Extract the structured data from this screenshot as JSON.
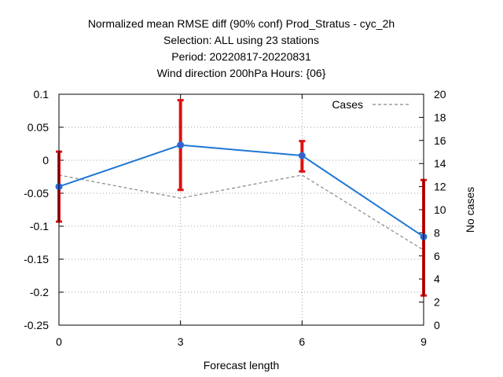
{
  "chart_data": {
    "type": "line",
    "title_lines": [
      "Normalized mean RMSE diff (90% conf) Prod_Stratus - cyc_2h",
      "Selection: ALL using    23 stations",
      "Period: 20220817-20220831",
      "Wind direction 200hPa   Hours: {06}"
    ],
    "xlabel": "Forecast length",
    "ylabel_right": "No cases",
    "x": [
      0,
      3,
      6,
      9
    ],
    "x_ticks": [
      "0",
      "3",
      "6",
      "9"
    ],
    "xlim": [
      0,
      9
    ],
    "ylim_left": [
      -0.25,
      0.1
    ],
    "y_ticks_left": [
      "0.1",
      "0.05",
      "0",
      "-0.05",
      "-0.1",
      "-0.15",
      "-0.2",
      "-0.25"
    ],
    "ylim_right": [
      0,
      20
    ],
    "y_ticks_right": [
      "20",
      "18",
      "16",
      "14",
      "12",
      "10",
      "8",
      "6",
      "4",
      "2",
      "0"
    ],
    "grid": true,
    "legend_position": "top-right",
    "series": [
      {
        "kind": "mean_diff",
        "axis": "left",
        "color": "#1f77d4",
        "values": [
          -0.04,
          0.023,
          0.007,
          -0.116
        ],
        "err_low": [
          -0.093,
          -0.045,
          -0.017,
          -0.205
        ],
        "err_high": [
          0.013,
          0.091,
          0.029,
          -0.03
        ],
        "err_color": "#dd1111"
      },
      {
        "name": "Cases",
        "kind": "cases",
        "axis": "right",
        "color": "#888888",
        "dashed": true,
        "values": [
          13,
          11,
          13,
          6.5
        ]
      }
    ]
  }
}
